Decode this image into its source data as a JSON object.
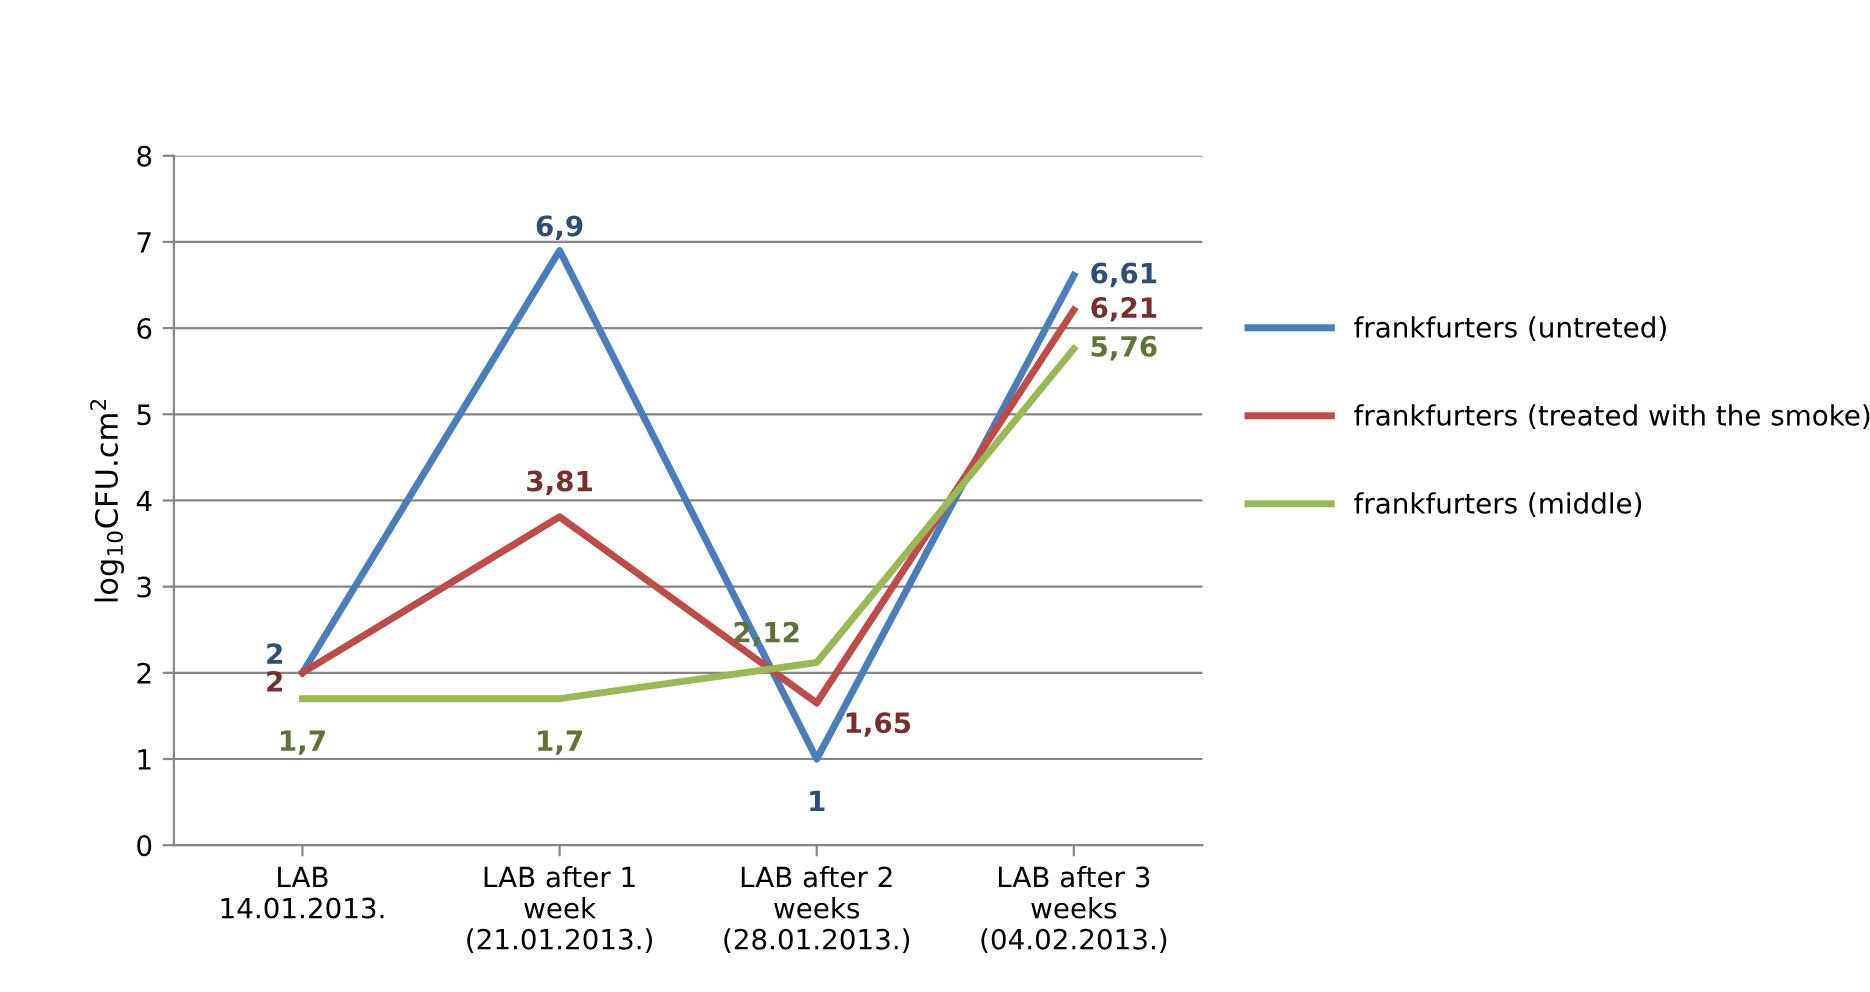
{
  "chart_data": {
    "type": "line",
    "ylabel": "log$_{10}$CFU.cm$^{2}$",
    "categories": [
      "LAB\n14.01.2013.",
      "LAB after 1\nweek\n(21.01.2013.)",
      "LAB after 2\nweeks\n(28.01.2013.)",
      "LAB after 3\nweeks\n(04.02.2013.)"
    ],
    "series": [
      {
        "name": "frankfurters (untreted)",
        "color": "#4a7ebb",
        "values": [
          2,
          6.9,
          1,
          6.61
        ],
        "value_labels": [
          "2",
          "6,9",
          "1",
          "6,61"
        ]
      },
      {
        "name": "frankfurters (treated with the smoke)",
        "color": "#be4b48",
        "values": [
          2,
          3.81,
          1.65,
          6.21
        ],
        "value_labels": [
          "2",
          "3,81",
          "1,65",
          "6,21"
        ]
      },
      {
        "name": "frankfurters (middle)",
        "color": "#98b954",
        "values": [
          1.7,
          1.7,
          2.12,
          5.76
        ],
        "value_labels": [
          "1,7",
          "1,7",
          "2,12",
          "5,76"
        ]
      }
    ],
    "ylim": [
      0,
      8
    ],
    "yticks": [
      0,
      1,
      2,
      3,
      4,
      5,
      6,
      7,
      8
    ],
    "grid": "y",
    "legend": "right",
    "marker": "none",
    "line_style": "solid"
  }
}
